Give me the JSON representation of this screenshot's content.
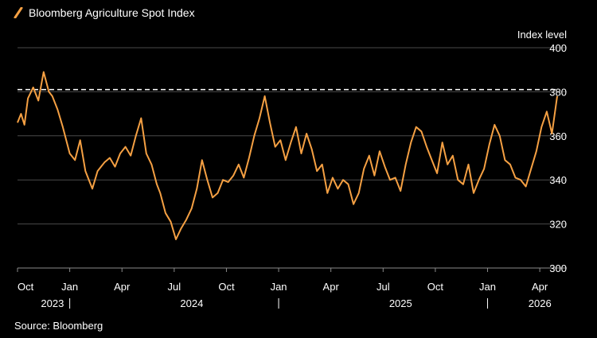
{
  "colors": {
    "line": "#f5a043",
    "grid": "#4a4a4a",
    "reference": "#ffffff",
    "background": "#000000"
  },
  "chart_data": {
    "type": "line",
    "title": "Bloomberg Agriculture Spot Index",
    "ylabel": "Index level",
    "source": "Source: Bloomberg",
    "ylim": [
      300,
      400
    ],
    "yticks": [
      300,
      320,
      340,
      360,
      380,
      400
    ],
    "reference_line": {
      "value": 381,
      "style": "dashed"
    },
    "x_range_months": [
      0,
      31
    ],
    "xticks": [
      {
        "label": "Oct",
        "month": 0
      },
      {
        "label": "Jan",
        "month": 3
      },
      {
        "label": "Apr",
        "month": 6
      },
      {
        "label": "Jul",
        "month": 9
      },
      {
        "label": "Oct",
        "month": 12
      },
      {
        "label": "Jan",
        "month": 15
      },
      {
        "label": "Apr",
        "month": 18
      },
      {
        "label": "Jul",
        "month": 21
      },
      {
        "label": "Oct",
        "month": 24
      },
      {
        "label": "Jan",
        "month": 27
      },
      {
        "label": "Apr",
        "month": 30
      }
    ],
    "years": [
      {
        "label": "2023",
        "month": 1.0
      },
      {
        "label": "2024",
        "month": 9.0
      },
      {
        "label": "2025",
        "month": 21.0
      },
      {
        "label": "2026",
        "month": 29.0
      }
    ],
    "year_separators": [
      3,
      15,
      27
    ],
    "series": [
      {
        "name": "Bloomberg Agriculture Spot Index",
        "x": [
          0.0,
          0.2,
          0.4,
          0.6,
          0.9,
          1.2,
          1.5,
          1.8,
          2.0,
          2.3,
          2.6,
          3.0,
          3.3,
          3.6,
          3.9,
          4.3,
          4.6,
          5.0,
          5.3,
          5.6,
          5.9,
          6.2,
          6.5,
          6.8,
          7.1,
          7.4,
          7.7,
          8.0,
          8.2,
          8.5,
          8.8,
          9.1,
          9.4,
          9.7,
          10.0,
          10.3,
          10.6,
          10.9,
          11.2,
          11.5,
          11.8,
          12.1,
          12.4,
          12.7,
          13.0,
          13.3,
          13.6,
          13.9,
          14.2,
          14.5,
          14.8,
          15.1,
          15.4,
          15.7,
          16.0,
          16.3,
          16.6,
          16.9,
          17.2,
          17.5,
          17.8,
          18.1,
          18.4,
          18.7,
          19.0,
          19.3,
          19.6,
          19.9,
          20.2,
          20.5,
          20.8,
          21.1,
          21.4,
          21.7,
          22.0,
          22.3,
          22.6,
          22.9,
          23.2,
          23.5,
          23.8,
          24.1,
          24.4,
          24.7,
          25.0,
          25.3,
          25.6,
          25.9,
          26.2,
          26.5,
          26.8,
          27.1,
          27.4,
          27.7,
          28.0,
          28.3,
          28.6,
          28.9,
          29.2,
          29.5,
          29.8,
          30.1,
          30.4,
          30.7,
          31.0
        ],
        "values": [
          366,
          370,
          365,
          377,
          382,
          376,
          389,
          380,
          378,
          372,
          364,
          352,
          349,
          358,
          344,
          336,
          344,
          348,
          350,
          346,
          352,
          355,
          351,
          360,
          368,
          352,
          347,
          338,
          334,
          325,
          321,
          313,
          318,
          322,
          327,
          336,
          349,
          340,
          332,
          334,
          340,
          339,
          342,
          347,
          341,
          350,
          360,
          368,
          378,
          366,
          355,
          358,
          349,
          357,
          364,
          352,
          361,
          354,
          344,
          347,
          334,
          341,
          336,
          340,
          338,
          329,
          334,
          345,
          351,
          342,
          353,
          346,
          340,
          341,
          335,
          347,
          357,
          364,
          362,
          355,
          349,
          343,
          357,
          347,
          351,
          340,
          338,
          347,
          334,
          340,
          345,
          356,
          365,
          360,
          349,
          347,
          341,
          340,
          337,
          345,
          353,
          364,
          371,
          361,
          378
        ]
      }
    ]
  }
}
